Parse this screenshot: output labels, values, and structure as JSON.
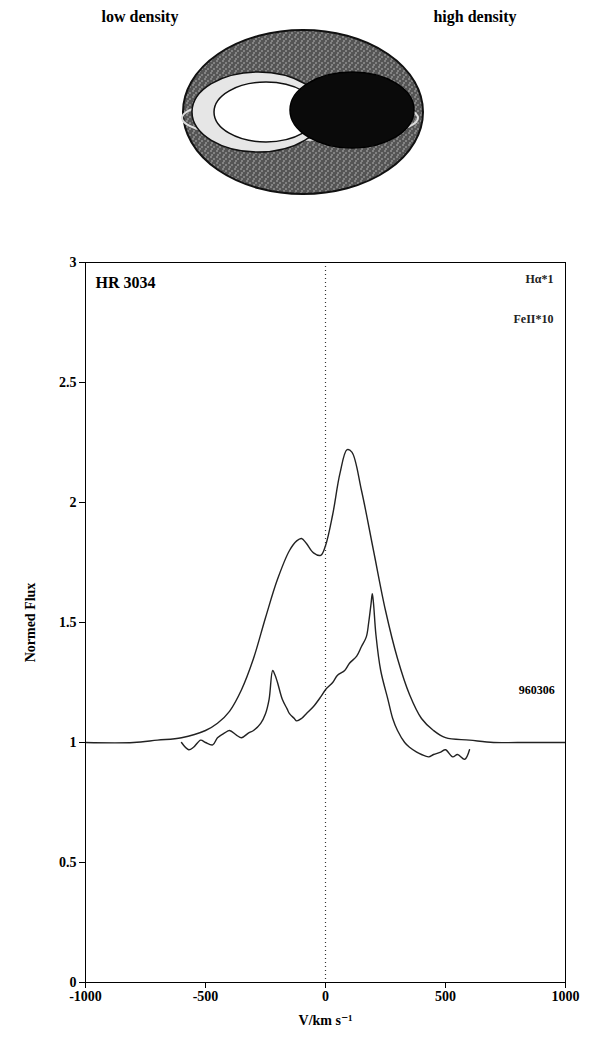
{
  "diagram": {
    "left_label": "low density",
    "right_label": "high density"
  },
  "chart_data": {
    "type": "line",
    "title": "HR 3034",
    "x_label": "V/km s⁻¹",
    "y_label": "Normed Flux",
    "xlim": [
      -1000,
      1000
    ],
    "xticks": [
      -1000,
      -500,
      0,
      500,
      1000
    ],
    "ylim": [
      0,
      3
    ],
    "yticks": [
      0,
      0.5,
      1,
      1.5,
      2,
      2.5,
      3
    ],
    "legend": "top-right",
    "reference_lines": [
      {
        "x": 0,
        "line_style": "dotted"
      }
    ],
    "annotations": [
      {
        "text": "960306",
        "x": 880,
        "y": 1.22
      }
    ],
    "series": [
      {
        "name": "Hα*1",
        "color": "#222222",
        "line_style": "solid",
        "x": [
          -1000,
          -800,
          -700,
          -600,
          -500,
          -450,
          -400,
          -350,
          -300,
          -250,
          -200,
          -150,
          -120,
          -100,
          -80,
          -50,
          -20,
          0,
          30,
          60,
          90,
          110,
          150,
          200,
          250,
          300,
          350,
          400,
          450,
          500,
          600,
          700,
          800,
          1000
        ],
        "values": [
          1.0,
          1.0,
          1.01,
          1.02,
          1.05,
          1.08,
          1.13,
          1.22,
          1.35,
          1.52,
          1.68,
          1.8,
          1.84,
          1.85,
          1.83,
          1.79,
          1.78,
          1.82,
          1.95,
          2.12,
          2.22,
          2.21,
          2.05,
          1.8,
          1.55,
          1.35,
          1.2,
          1.1,
          1.05,
          1.02,
          1.01,
          1.0,
          1.0,
          1.0
        ]
      },
      {
        "name": "FeII*10",
        "color": "#222222",
        "line_style": "solid",
        "x": [
          -600,
          -570,
          -550,
          -520,
          -500,
          -470,
          -450,
          -420,
          -400,
          -370,
          -350,
          -320,
          -300,
          -270,
          -250,
          -235,
          -220,
          -210,
          -200,
          -180,
          -160,
          -150,
          -130,
          -120,
          -100,
          -80,
          -50,
          -20,
          0,
          30,
          50,
          80,
          100,
          130,
          150,
          170,
          180,
          190,
          195,
          200,
          210,
          230,
          260,
          280,
          300,
          330,
          350,
          380,
          400,
          430,
          450,
          480,
          500,
          530,
          550,
          580,
          600
        ],
        "values": [
          1.0,
          0.97,
          0.98,
          1.01,
          1.0,
          0.99,
          1.02,
          1.04,
          1.05,
          1.03,
          1.02,
          1.04,
          1.05,
          1.08,
          1.12,
          1.18,
          1.3,
          1.28,
          1.25,
          1.18,
          1.14,
          1.12,
          1.1,
          1.09,
          1.1,
          1.12,
          1.15,
          1.19,
          1.22,
          1.25,
          1.28,
          1.3,
          1.33,
          1.36,
          1.4,
          1.44,
          1.5,
          1.58,
          1.62,
          1.58,
          1.45,
          1.3,
          1.18,
          1.1,
          1.05,
          1.0,
          0.98,
          0.96,
          0.95,
          0.94,
          0.95,
          0.96,
          0.97,
          0.94,
          0.95,
          0.93,
          0.97
        ]
      }
    ]
  }
}
